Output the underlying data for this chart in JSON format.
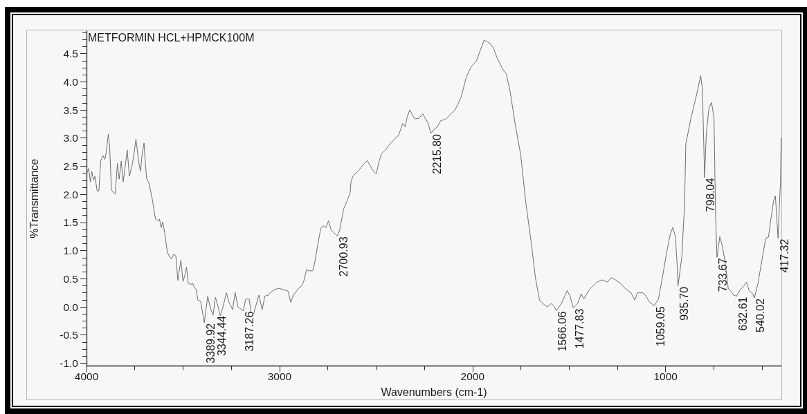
{
  "chart_data": {
    "type": "line",
    "title": "METFORMIN HCL+HPMCK100M",
    "xlabel": "Wavenumbers (cm-1)",
    "ylabel": "%Transmittance",
    "color": "#6e6e6e",
    "x": [
      4000,
      3989,
      3980,
      3973,
      3963,
      3956,
      3945,
      3936,
      3926,
      3915,
      3905,
      3898,
      3887,
      3880,
      3871,
      3860,
      3851,
      3840,
      3831,
      3820,
      3810,
      3801,
      3789,
      3778,
      3764,
      3753,
      3744,
      3737,
      3730,
      3720,
      3714,
      3702,
      3696,
      3689,
      3675,
      3658,
      3643,
      3632,
      3622,
      3613,
      3605,
      3595,
      3581,
      3574,
      3560,
      3547,
      3537,
      3527,
      3521,
      3511,
      3500,
      3490,
      3482,
      3473,
      3459,
      3450,
      3442,
      3432,
      3423,
      3409,
      3389.92,
      3372,
      3360,
      3344.44,
      3332,
      3318,
      3307,
      3293,
      3275,
      3264,
      3243,
      3230,
      3216,
      3187.26,
      3175,
      3157,
      3148,
      3134,
      3107,
      3090,
      3076,
      3057,
      3046,
      3025,
      3003,
      2956,
      2942,
      2928,
      2901,
      2884,
      2873,
      2860,
      2847,
      2828,
      2817,
      2803,
      2787,
      2774,
      2760,
      2746,
      2733,
      2700.93,
      2688,
      2668,
      2647,
      2634,
      2630,
      2620,
      2593,
      2566,
      2546,
      2513,
      2499,
      2485,
      2471,
      2451,
      2424,
      2404,
      2383,
      2362,
      2350,
      2338,
      2325,
      2310,
      2298,
      2278,
      2258,
      2245,
      2231,
      2215.8,
      2200,
      2182,
      2165,
      2140,
      2112,
      2090,
      2059,
      2032,
      2005,
      1980,
      1953,
      1940,
      1912,
      1892,
      1872,
      1845,
      1825,
      1805,
      1778,
      1751,
      1724,
      1695,
      1674,
      1653,
      1633,
      1612,
      1592,
      1578,
      1566.06,
      1540,
      1510,
      1495,
      1477.83,
      1457,
      1437,
      1424,
      1397,
      1356,
      1329,
      1301,
      1281,
      1260,
      1234,
      1207,
      1179,
      1159,
      1146,
      1119,
      1104,
      1085,
      1059.05,
      1037,
      1017,
      997,
      976,
      963,
      949,
      940,
      935.7,
      916,
      902,
      895,
      868,
      842,
      818,
      809,
      798.04,
      789,
      775,
      762,
      749,
      744,
      741,
      733.67,
      727,
      719,
      708,
      693,
      675,
      662,
      648,
      632.61,
      615,
      595,
      581,
      568,
      548,
      540.02,
      521,
      501,
      481,
      467,
      454,
      440,
      431,
      417.32,
      411,
      405,
      401
    ],
    "values": [
      2.36,
      2.46,
      2.22,
      2.41,
      2.25,
      2.32,
      2.06,
      2.06,
      2.6,
      2.69,
      2.62,
      2.74,
      3.07,
      2.84,
      2.08,
      2.03,
      2.01,
      2.55,
      2.27,
      2.59,
      2.22,
      2.46,
      2.79,
      2.32,
      2.51,
      2.74,
      2.98,
      2.79,
      2.58,
      2.41,
      2.65,
      2.91,
      2.6,
      2.29,
      2.18,
      1.89,
      1.56,
      1.53,
      1.56,
      1.41,
      1.51,
      1.32,
      0.97,
      0.92,
      0.85,
      0.94,
      0.9,
      0.47,
      0.61,
      0.83,
      0.45,
      0.57,
      0.71,
      0.42,
      0.4,
      0.42,
      0.35,
      0.31,
      0.12,
      0.1,
      -0.28,
      0.19,
      0,
      -0.15,
      0.17,
      0,
      -0.16,
      0,
      0.25,
      0.1,
      -0.05,
      0.26,
      0,
      -0.07,
      0.14,
      0.14,
      -0.09,
      -0.12,
      0.21,
      -0.05,
      0.19,
      0.21,
      0.26,
      0.31,
      0.33,
      0.28,
      0.08,
      0.21,
      0.33,
      0.38,
      0.47,
      0.66,
      0.64,
      0.64,
      0.8,
      1.08,
      1.39,
      1.44,
      1.41,
      1.53,
      1.37,
      1.26,
      1.37,
      1.74,
      1.91,
      2.03,
      2.22,
      2.32,
      2.41,
      2.53,
      2.6,
      2.41,
      2.36,
      2.58,
      2.72,
      2.79,
      2.91,
      2.98,
      3.05,
      3.26,
      3.2,
      3.38,
      3.5,
      3.4,
      3.34,
      3.35,
      3.43,
      3.35,
      3.27,
      3.08,
      3.15,
      3.2,
      3.31,
      3.33,
      3.43,
      3.5,
      3.73,
      4.09,
      4.28,
      4.37,
      4.62,
      4.74,
      4.69,
      4.6,
      4.42,
      4.23,
      4.14,
      3.82,
      3.22,
      2.71,
      1.85,
      1.11,
      0.51,
      0.12,
      0.05,
      0,
      0.06,
      0.01,
      -0.07,
      0.06,
      0.29,
      0.19,
      -0.02,
      0.05,
      0.23,
      0.14,
      0.3,
      0.44,
      0.48,
      0.44,
      0.52,
      0.48,
      0.42,
      0.32,
      0.25,
      0.12,
      0.25,
      0.25,
      0.21,
      0.09,
      0.02,
      0.14,
      0.51,
      0.92,
      1.29,
      1.41,
      1.25,
      0.74,
      0.37,
      0.88,
      1.8,
      2.9,
      3.36,
      3.73,
      4.11,
      3.86,
      2.3,
      3.08,
      3.54,
      3.63,
      3.36,
      2.25,
      1.66,
      0.88,
      1.05,
      1.25,
      1.11,
      0.83,
      0.32,
      0.28,
      0.21,
      0.19,
      0.3,
      0.37,
      0.44,
      0.3,
      0.23,
      0.16,
      0.42,
      0.83,
      1.22,
      1.24,
      1.57,
      1.89,
      1.97,
      1.22,
      1.75,
      2.2,
      3.0
    ],
    "xlim": [
      4000,
      400
    ],
    "xticks": [
      4000,
      {
        "value": 3750,
        "label": null
      },
      {
        "value": 3500,
        "label": null
      },
      {
        "value": 3250,
        "label": null
      },
      3000,
      {
        "value": 2750,
        "label": null
      },
      {
        "value": 2500,
        "label": null
      },
      {
        "value": 2250,
        "label": null
      },
      2000,
      {
        "value": 1750,
        "label": null
      },
      {
        "value": 1500,
        "label": null
      },
      {
        "value": 1250,
        "label": null
      },
      1000,
      {
        "value": 750,
        "label": null
      },
      {
        "value": 500,
        "label": null
      }
    ],
    "ylim": [
      -1.05,
      4.9
    ],
    "yticks": [
      {
        "value": -1,
        "label": "-1.0"
      },
      {
        "value": -0.875,
        "label": null
      },
      {
        "value": -0.75,
        "label": null
      },
      {
        "value": -0.625,
        "label": null
      },
      -0.5,
      {
        "value": -0.375,
        "label": null
      },
      {
        "value": -0.25,
        "label": null
      },
      {
        "value": -0.125,
        "label": null
      },
      {
        "value": 0,
        "label": "0.0"
      },
      {
        "value": 0.125,
        "label": null
      },
      {
        "value": 0.25,
        "label": null
      },
      {
        "value": 0.375,
        "label": null
      },
      0.5,
      {
        "value": 0.625,
        "label": null
      },
      {
        "value": 0.75,
        "label": null
      },
      {
        "value": 0.875,
        "label": null
      },
      {
        "value": 1,
        "label": "1.0"
      },
      {
        "value": 1.125,
        "label": null
      },
      {
        "value": 1.25,
        "label": null
      },
      {
        "value": 1.375,
        "label": null
      },
      1.5,
      {
        "value": 1.625,
        "label": null
      },
      {
        "value": 1.75,
        "label": null
      },
      {
        "value": 1.875,
        "label": null
      },
      {
        "value": 2,
        "label": "2.0"
      },
      {
        "value": 2.125,
        "label": null
      },
      {
        "value": 2.25,
        "label": null
      },
      {
        "value": 2.375,
        "label": null
      },
      2.5,
      {
        "value": 2.625,
        "label": null
      },
      {
        "value": 2.75,
        "label": null
      },
      {
        "value": 2.875,
        "label": null
      },
      {
        "value": 3,
        "label": "3.0"
      },
      {
        "value": 3.125,
        "label": null
      },
      {
        "value": 3.25,
        "label": null
      },
      {
        "value": 3.375,
        "label": null
      },
      3.5,
      {
        "value": 3.625,
        "label": null
      },
      {
        "value": 3.75,
        "label": null
      },
      {
        "value": 3.875,
        "label": null
      },
      {
        "value": 4,
        "label": "4.0"
      },
      {
        "value": 4.125,
        "label": null
      },
      {
        "value": 4.25,
        "label": null
      },
      {
        "value": 4.375,
        "label": null
      },
      4.5,
      {
        "value": 4.625,
        "label": null
      },
      {
        "value": 4.75,
        "label": null
      },
      {
        "value": 4.875,
        "label": null
      }
    ],
    "annotations": [
      {
        "text": "3389.92",
        "x": 3389.92,
        "y": -0.28
      },
      {
        "text": "3344.44",
        "x": 3344.44,
        "y": -0.15
      },
      {
        "text": "3187.26",
        "x": 3187.26,
        "y": -0.07
      },
      {
        "text": "2700.93",
        "x": 2700.93,
        "y": 1.26
      },
      {
        "text": "2215.80",
        "x": 2215.8,
        "y": 3.08
      },
      {
        "text": "1566.06",
        "x": 1566.06,
        "y": -0.07
      },
      {
        "text": "1477.83",
        "x": 1477.83,
        "y": -0.02
      },
      {
        "text": "1059.05",
        "x": 1059.05,
        "y": 0.02
      },
      {
        "text": "935.70",
        "x": 935.7,
        "y": 0.37
      },
      {
        "text": "798.04",
        "x": 798.04,
        "y": 2.3
      },
      {
        "text": "733.67",
        "x": 733.67,
        "y": 0.88
      },
      {
        "text": "632.61",
        "x": 632.61,
        "y": 0.19
      },
      {
        "text": "540.02",
        "x": 540.02,
        "y": 0.16
      },
      {
        "text": "417.32",
        "x": 417.32,
        "y": 1.22
      }
    ]
  }
}
